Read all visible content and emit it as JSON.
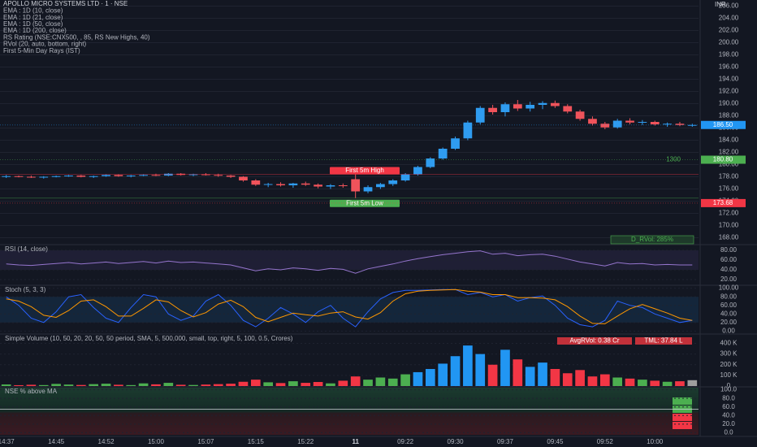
{
  "chart_data": [
    {
      "type": "candlestick",
      "title": "APOLLO MICRO SYSTEMS LTD · 1 · NSE",
      "currency": "INR",
      "indicators": [
        "EMA : 1D (10, close)",
        "EMA : 1D (21, close)",
        "EMA : 1D (50, close)",
        "EMA : 1D (200, close)",
        "RS Rating (NSE:CNX500, , 85, RS New Highs, 40)",
        "RVol (20, auto, bottom, right)",
        "First 5-Min Day Rays (IST)"
      ],
      "categories": [
        "14:37",
        null,
        null,
        null,
        "14:45",
        null,
        null,
        null,
        "14:52",
        null,
        null,
        null,
        "15:00",
        null,
        null,
        null,
        "15:07",
        null,
        null,
        null,
        "15:15",
        null,
        null,
        null,
        "15:22",
        null,
        null,
        null,
        "11",
        null,
        null,
        null,
        "09:22",
        null,
        null,
        null,
        "09:30",
        null,
        null,
        null,
        "09:37",
        null,
        null,
        null,
        "09:45",
        null,
        null,
        null,
        "09:52",
        null,
        null,
        null,
        "10:00",
        null,
        null,
        null
      ],
      "open": [
        178.0,
        178.1,
        178.0,
        177.9,
        178.0,
        178.1,
        178.2,
        178.0,
        178.1,
        178.3,
        178.1,
        178.2,
        178.3,
        178.2,
        178.5,
        178.3,
        178.4,
        178.3,
        178.2,
        178.0,
        177.4,
        176.7,
        176.8,
        176.6,
        176.9,
        176.7,
        176.4,
        176.6,
        177.6,
        175.6,
        176.3,
        176.8,
        177.4,
        178.4,
        179.6,
        181.0,
        182.6,
        184.3,
        186.9,
        189.3,
        188.6,
        189.9,
        189.2,
        189.8,
        190.1,
        189.6,
        188.7,
        187.5,
        186.7,
        186.1,
        187.2,
        186.9,
        187.0,
        186.6,
        186.7,
        186.5
      ],
      "high": [
        178.3,
        178.2,
        178.2,
        178.1,
        178.2,
        178.3,
        178.3,
        178.2,
        178.4,
        178.4,
        178.3,
        178.4,
        178.5,
        178.6,
        178.6,
        178.5,
        178.6,
        178.5,
        178.3,
        178.1,
        177.6,
        177.0,
        177.1,
        177.0,
        177.2,
        176.9,
        176.8,
        176.9,
        178.4,
        176.6,
        177.0,
        177.6,
        178.6,
        179.8,
        181.2,
        182.8,
        184.6,
        187.2,
        189.6,
        189.8,
        190.2,
        190.6,
        190.3,
        190.4,
        190.5,
        189.9,
        189.0,
        187.9,
        187.0,
        187.5,
        187.6,
        187.3,
        187.2,
        186.9,
        187.0,
        186.7
      ],
      "low": [
        177.8,
        177.9,
        177.8,
        177.7,
        177.9,
        178.0,
        177.9,
        177.8,
        178.0,
        178.0,
        177.9,
        178.1,
        178.1,
        178.1,
        178.2,
        178.1,
        178.2,
        178.0,
        177.8,
        177.2,
        176.5,
        176.3,
        176.4,
        176.2,
        176.5,
        176.1,
        176.0,
        176.2,
        174.5,
        175.3,
        176.0,
        176.5,
        177.2,
        178.2,
        179.4,
        180.8,
        182.4,
        184.0,
        186.6,
        188.2,
        187.9,
        188.8,
        188.7,
        189.1,
        189.3,
        188.4,
        187.2,
        186.4,
        185.8,
        185.9,
        186.6,
        186.5,
        186.4,
        186.2,
        186.3,
        186.2
      ],
      "close": [
        178.1,
        178.0,
        177.9,
        178.0,
        178.1,
        178.2,
        178.0,
        178.1,
        178.3,
        178.1,
        178.2,
        178.3,
        178.2,
        178.5,
        178.3,
        178.4,
        178.3,
        178.2,
        178.0,
        177.4,
        176.7,
        176.8,
        176.6,
        176.9,
        176.7,
        176.4,
        176.6,
        176.5,
        175.6,
        176.3,
        176.8,
        177.4,
        178.4,
        179.6,
        181.0,
        182.6,
        184.3,
        186.9,
        189.3,
        188.6,
        189.9,
        189.2,
        189.8,
        190.1,
        189.6,
        188.7,
        187.5,
        186.7,
        186.1,
        187.2,
        186.9,
        187.0,
        186.6,
        186.7,
        186.5,
        186.5
      ],
      "up_color": "#2f9cf0",
      "down_color": "#f0535b",
      "ylim": [
        167,
        207
      ],
      "yticks": [
        {
          "value": 168,
          "label": "168.00"
        },
        {
          "value": 170,
          "label": "170.00"
        },
        {
          "value": 172,
          "label": "172.00"
        },
        {
          "value": 174,
          "label": "174.00"
        },
        {
          "value": 176,
          "label": "176.00"
        },
        {
          "value": 178,
          "label": "178.00"
        },
        {
          "value": 180,
          "label": "180.00"
        },
        {
          "value": 182,
          "label": "182.00"
        },
        {
          "value": 184,
          "label": "184.00"
        },
        {
          "value": 186,
          "label": "186.00"
        },
        {
          "value": 188,
          "label": "188.00"
        },
        {
          "value": 190,
          "label": "190.00"
        },
        {
          "value": 192,
          "label": "192.00"
        },
        {
          "value": 194,
          "label": "194.00"
        },
        {
          "value": 196,
          "label": "196.00"
        },
        {
          "value": 198,
          "label": "198.00"
        },
        {
          "value": 200,
          "label": "200.00"
        },
        {
          "value": 202,
          "label": "202.00"
        },
        {
          "value": 204,
          "label": "204.00"
        },
        {
          "value": 206,
          "label": "206.00"
        }
      ],
      "grid": true,
      "levels": [
        {
          "value": 178.4,
          "label": "First 5m High",
          "color": "#f23645"
        },
        {
          "value": 174.5,
          "label": "First 5m Low",
          "color": "#4caf50"
        }
      ],
      "price_tags": [
        {
          "value": 186.5,
          "label": "186.50",
          "color": "#2196f3"
        },
        {
          "value": 180.8,
          "label": "180.80",
          "color": "#4caf50"
        },
        {
          "value": 173.68,
          "label": "173.68",
          "color": "#f23645"
        }
      ],
      "annotations": [
        "1300",
        "D_RVol: 285%"
      ]
    },
    {
      "type": "line",
      "title": "RSI (14, close)",
      "ylim": [
        10,
        90
      ],
      "yticks": [
        {
          "value": 80,
          "label": "80.00"
        },
        {
          "value": 60,
          "label": "60.00"
        },
        {
          "value": 40,
          "label": "40.00"
        },
        {
          "value": 20,
          "label": "20.00"
        }
      ],
      "series": [
        {
          "color": "#9575cd",
          "values": [
            52,
            50,
            49,
            51,
            53,
            55,
            52,
            54,
            56,
            53,
            55,
            57,
            54,
            58,
            55,
            56,
            54,
            52,
            50,
            44,
            38,
            42,
            40,
            44,
            42,
            39,
            43,
            41,
            33,
            42,
            47,
            52,
            58,
            63,
            67,
            71,
            74,
            77,
            79,
            72,
            74,
            69,
            71,
            72,
            68,
            62,
            56,
            52,
            48,
            55,
            52,
            53,
            50,
            51,
            50,
            50
          ]
        }
      ]
    },
    {
      "type": "line",
      "title": "Stoch (5, 3, 3)",
      "ylim": [
        -5,
        105
      ],
      "yticks": [
        {
          "value": 100,
          "label": "100.00"
        },
        {
          "value": 80,
          "label": "80.00"
        },
        {
          "value": 60,
          "label": "60.00"
        },
        {
          "value": 40,
          "label": "40.00"
        },
        {
          "value": 20,
          "label": "20.00"
        },
        {
          "value": 0,
          "label": "0.00"
        }
      ],
      "series": [
        {
          "color": "#2962ff",
          "values": [
            80,
            60,
            30,
            20,
            45,
            80,
            85,
            55,
            30,
            20,
            55,
            85,
            80,
            40,
            25,
            35,
            70,
            85,
            60,
            25,
            10,
            30,
            55,
            40,
            20,
            45,
            60,
            30,
            10,
            45,
            75,
            90,
            95,
            95,
            96,
            97,
            97,
            85,
            90,
            80,
            85,
            70,
            78,
            82,
            60,
            30,
            15,
            10,
            25,
            70,
            60,
            55,
            40,
            30,
            20,
            25
          ]
        },
        {
          "color": "#ff9800",
          "values": [
            75,
            70,
            57,
            37,
            32,
            48,
            70,
            73,
            57,
            35,
            35,
            53,
            73,
            68,
            48,
            33,
            43,
            63,
            72,
            57,
            32,
            22,
            32,
            42,
            38,
            35,
            42,
            45,
            33,
            28,
            43,
            70,
            87,
            93,
            95,
            96,
            97,
            93,
            91,
            85,
            85,
            78,
            78,
            77,
            73,
            57,
            35,
            18,
            17,
            35,
            52,
            62,
            52,
            42,
            30,
            25
          ]
        }
      ]
    },
    {
      "type": "bar",
      "title": "Simple Volume (10, 50, 20, 20, 50, 50 period, SMA, 5, 500,000, small, top, right, 5, 100, 0.5, Crores)",
      "tags": [
        "AvgRVol: 0.38 Cr",
        "TML: 37.84 L"
      ],
      "ylim": [
        0,
        480000
      ],
      "yticks": [
        {
          "value": 400000,
          "label": "400 K"
        },
        {
          "value": 300000,
          "label": "300 K"
        },
        {
          "value": 200000,
          "label": "200 K"
        },
        {
          "value": 100000,
          "label": "100 K"
        },
        0
      ],
      "values": [
        15000,
        8000,
        12000,
        9000,
        20000,
        14000,
        10000,
        18000,
        22000,
        12000,
        9000,
        25000,
        16000,
        30000,
        12000,
        10000,
        14000,
        18000,
        22000,
        40000,
        60000,
        35000,
        28000,
        45000,
        30000,
        38000,
        25000,
        50000,
        90000,
        60000,
        80000,
        70000,
        110000,
        130000,
        160000,
        210000,
        280000,
        380000,
        300000,
        200000,
        340000,
        250000,
        180000,
        220000,
        160000,
        120000,
        150000,
        90000,
        110000,
        80000,
        70000,
        60000,
        50000,
        40000,
        45000,
        55000
      ],
      "colors": [
        "#4caf50",
        "#f23645",
        "#f23645",
        "#4caf50",
        "#4caf50",
        "#4caf50",
        "#f23645",
        "#4caf50",
        "#4caf50",
        "#f23645",
        "#4caf50",
        "#4caf50",
        "#f23645",
        "#4caf50",
        "#f23645",
        "#4caf50",
        "#f23645",
        "#f23645",
        "#f23645",
        "#f23645",
        "#f23645",
        "#4caf50",
        "#f23645",
        "#4caf50",
        "#f23645",
        "#f23645",
        "#4caf50",
        "#f23645",
        "#f23645",
        "#4caf50",
        "#4caf50",
        "#4caf50",
        "#4caf50",
        "#2196f3",
        "#2196f3",
        "#2196f3",
        "#2196f3",
        "#2196f3",
        "#2196f3",
        "#f23645",
        "#2196f3",
        "#f23645",
        "#2196f3",
        "#2196f3",
        "#f23645",
        "#f23645",
        "#f23645",
        "#f23645",
        "#f23645",
        "#4caf50",
        "#f23645",
        "#4caf50",
        "#f23645",
        "#4caf50",
        "#f23645",
        "#9e9e9e"
      ]
    },
    {
      "type": "band",
      "title": "NSE % above MA",
      "ylim": [
        -5,
        105
      ],
      "yticks": [
        {
          "value": 100,
          "label": "100.0"
        },
        {
          "value": 80,
          "label": "80.0"
        },
        {
          "value": 60,
          "label": "60.0"
        },
        {
          "value": 40,
          "label": "40.0"
        },
        {
          "value": 20,
          "label": "20.0"
        },
        {
          "value": 0,
          "label": "0.0"
        }
      ]
    }
  ]
}
